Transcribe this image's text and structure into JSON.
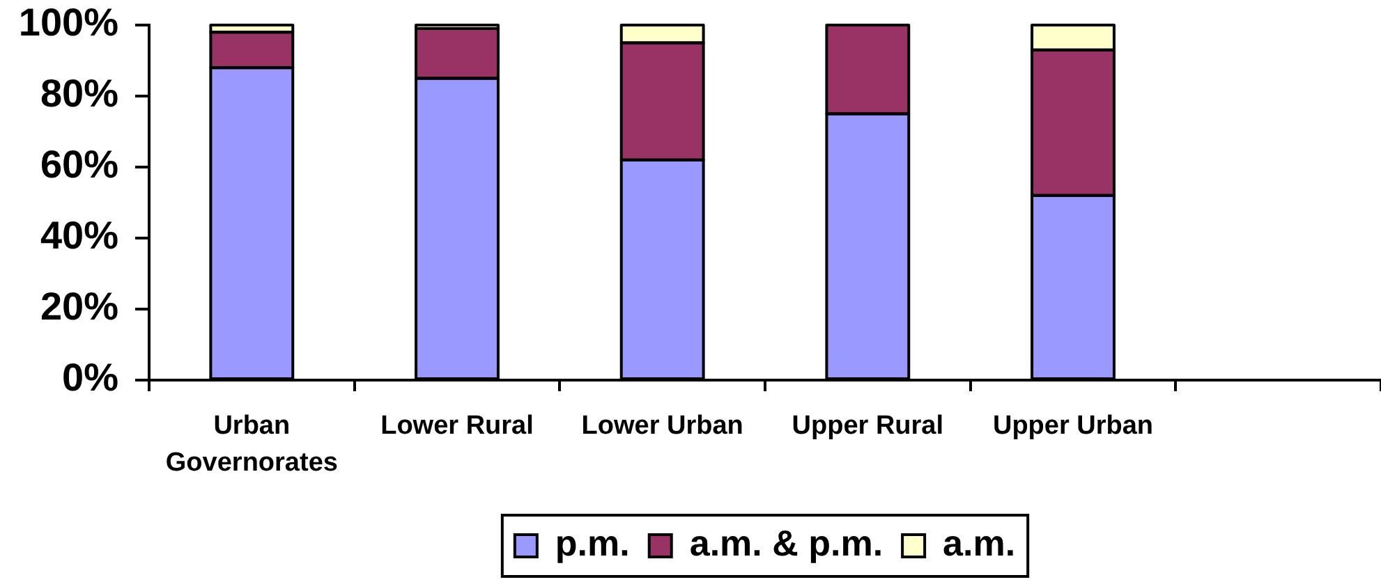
{
  "chart_data": {
    "type": "bar",
    "categories": [
      "Urban Governorates",
      "Lower Rural",
      "Lower Urban",
      "Upper Rural",
      "Upper Urban",
      null
    ],
    "series": [
      {
        "name": "p.m.",
        "color": "#9999ff",
        "values": [
          88,
          85,
          62,
          75,
          52,
          null
        ]
      },
      {
        "name": "a.m. & p.m.",
        "color": "#993366",
        "values": [
          10,
          14,
          33,
          25,
          41,
          null
        ]
      },
      {
        "name": "a.m.",
        "color": "#ffffcc",
        "values": [
          2,
          1,
          5,
          0,
          7,
          null
        ]
      }
    ],
    "stacked": true,
    "ylim": [
      0,
      100
    ],
    "yticks": [
      {
        "value": 0,
        "label": "0%"
      },
      {
        "value": 20,
        "label": "20%"
      },
      {
        "value": 40,
        "label": "40%"
      },
      {
        "value": 60,
        "label": "60%"
      },
      {
        "value": 80,
        "label": "80%"
      },
      {
        "value": 100,
        "label": "100%"
      }
    ],
    "legend": "bottom"
  }
}
